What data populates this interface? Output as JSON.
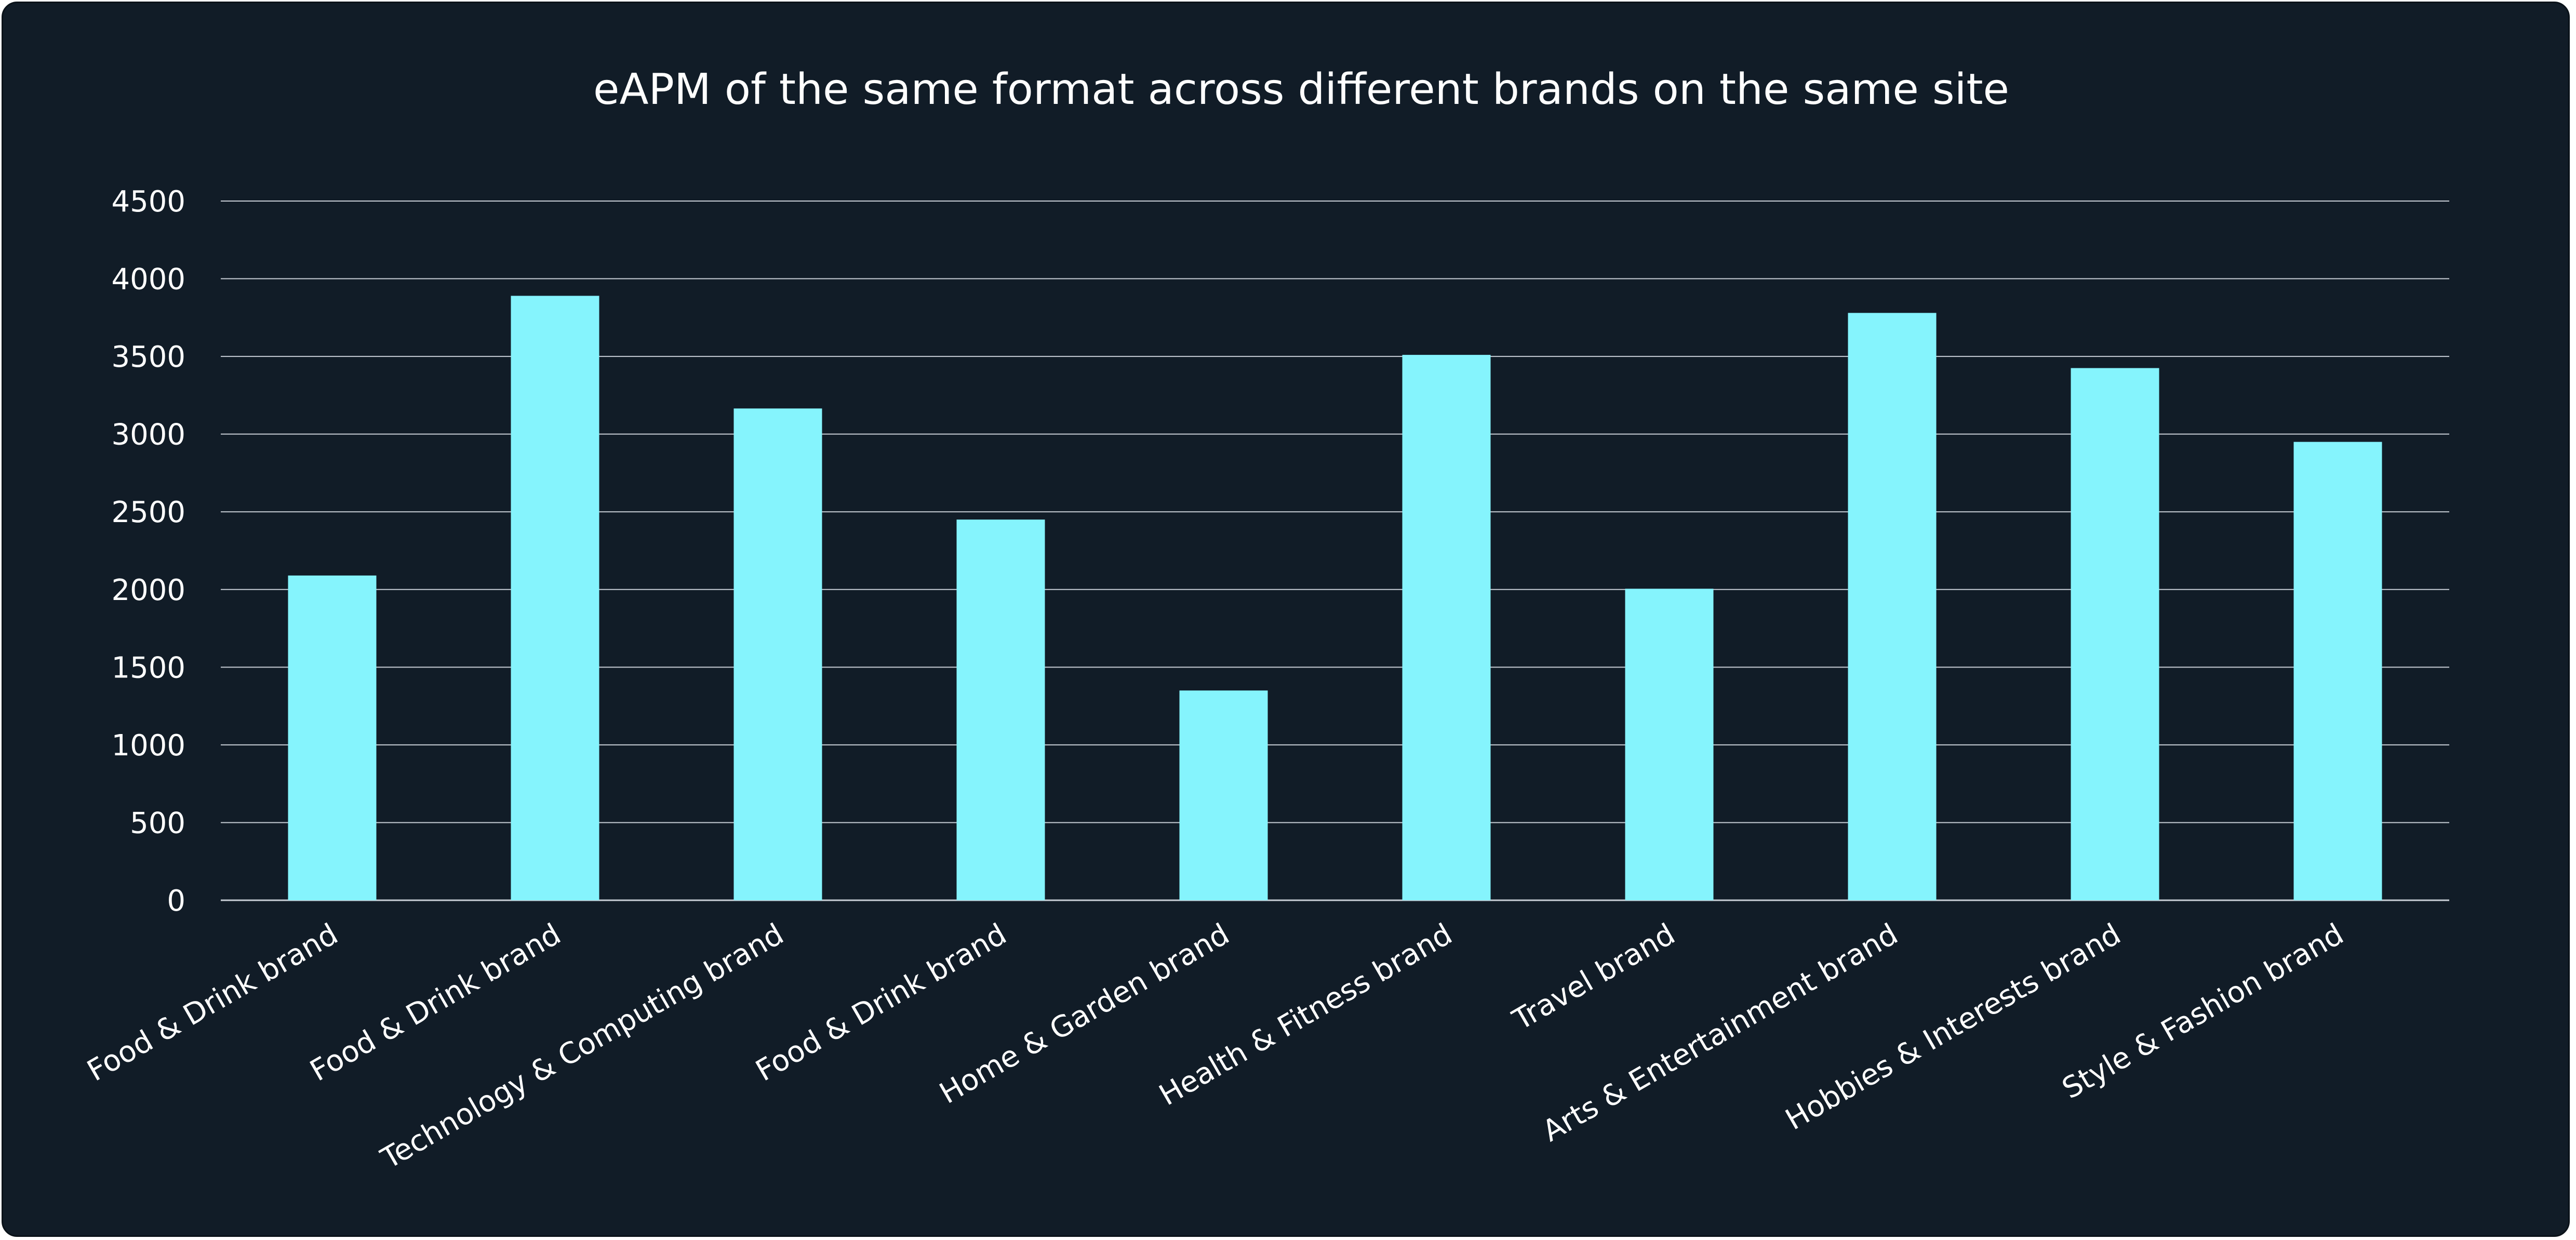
{
  "chart_data": {
    "type": "bar",
    "title": "eAPM of the same format across different brands on the same site",
    "categories": [
      "Food & Drink brand",
      "Food & Drink brand",
      "Technology & Computing brand",
      "Food & Drink brand",
      "Home & Garden brand",
      "Health & Fitness brand",
      "Travel brand",
      "Arts & Entertainment brand",
      "Hobbies & Interests brand",
      "Style & Fashion brand"
    ],
    "values": [
      2090,
      3890,
      3165,
      2450,
      1350,
      3510,
      2005,
      3780,
      3425,
      2950
    ],
    "ylim": [
      0,
      4500
    ],
    "yticks": [
      0,
      500,
      1000,
      1500,
      2000,
      2500,
      3000,
      3500,
      4000,
      4500
    ],
    "xlabel": "",
    "ylabel": "",
    "grid": true,
    "legend": "none",
    "bar_color": "#85f4fd",
    "background_color": "#111c27",
    "grid_color": "#c8ced6",
    "text_color": "#ffffff"
  }
}
